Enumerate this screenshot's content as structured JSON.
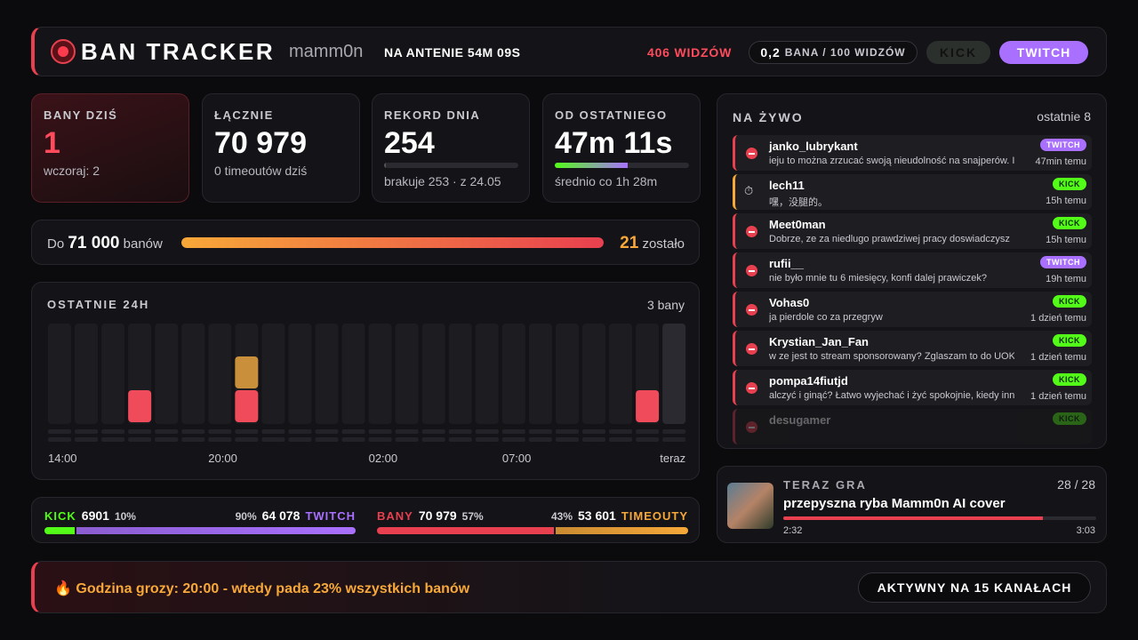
{
  "header": {
    "title": "BAN TRACKER",
    "channel": "mamm0n",
    "live": "NA ANTENIE 54M 09S",
    "viewers": "406 WIDZÓW",
    "rate_value": "0,2",
    "rate_unit": "BANA / 100 WIDZÓW",
    "buttons": [
      "KICK",
      "TWITCH"
    ]
  },
  "stats": [
    {
      "label": "BANY DZIŚ",
      "value": "1",
      "note": "wczoraj: 2"
    },
    {
      "label": "ŁĄCZNIE",
      "value": "70 979",
      "note": "0 timeoutów dziś"
    },
    {
      "label": "REKORD DNIA",
      "value": "254",
      "note": "brakuje 253 · z 24.05"
    },
    {
      "label": "OD OSTATNIEGO",
      "value": "47m 11s",
      "note": "średnio co 1h 28m"
    }
  ],
  "goal": {
    "prefix": "Do",
    "target": {
      "value": 71000,
      "label": "71 000"
    },
    "unit": "banów",
    "remaining": 21,
    "remaining_label": "zostało"
  },
  "last24h": {
    "title": "OSTATNIE 24H",
    "summary": "3 bany",
    "categories": [
      "14:00",
      null,
      null,
      null,
      null,
      null,
      "20:00",
      null,
      null,
      null,
      null,
      null,
      "02:00",
      null,
      null,
      null,
      null,
      "07:00",
      null,
      null,
      null,
      null,
      null,
      "teraz"
    ],
    "bans": [
      0,
      0,
      0,
      1,
      0,
      0,
      0,
      1,
      0,
      0,
      0,
      0,
      0,
      0,
      0,
      0,
      0,
      0,
      0,
      0,
      0,
      0,
      1,
      0
    ],
    "timeouts": [
      0,
      0,
      0,
      0,
      0,
      0,
      0,
      1,
      0,
      0,
      0,
      0,
      0,
      0,
      0,
      0,
      0,
      0,
      0,
      0,
      0,
      0,
      0,
      0
    ]
  },
  "split": [
    {
      "left": {
        "name": "KICK",
        "count": "6901",
        "pct": {
          "value": 10,
          "label": "10%"
        }
      },
      "right": {
        "name": "TWITCH",
        "count": "64 078",
        "pct": {
          "value": 90,
          "label": "90%"
        }
      }
    },
    {
      "left": {
        "name": "BANY",
        "count": "70 979",
        "pct": {
          "value": 57,
          "label": "57%"
        }
      },
      "right": {
        "name": "TIMEOUTY",
        "count": "53 601",
        "pct": {
          "value": 43,
          "label": "43%"
        }
      }
    }
  ],
  "feed": {
    "title": "NA ŻYWO",
    "count": "ostatnie 8",
    "items": [
      {
        "user": "janko_lubrykant",
        "message": "ieju to można zrzucać swoją nieudolność na snajperów. I",
        "platform": "TWITCH",
        "time": "47min temu",
        "kind": "ban"
      },
      {
        "user": "lech11",
        "message": "嘿，没腿的。",
        "platform": "KICK",
        "time": "15h temu",
        "kind": "timeout"
      },
      {
        "user": "Meet0man",
        "message": "Dobrze, ze za niedlugo prawdziwej pracy doswiadczysz",
        "platform": "KICK",
        "time": "15h temu",
        "kind": "ban"
      },
      {
        "user": "rufii__",
        "message": "nie było mnie tu 6 miesięcy, konfi dalej prawiczek?",
        "platform": "TWITCH",
        "time": "19h temu",
        "kind": "ban"
      },
      {
        "user": "Vohas0",
        "message": "ja pierdole co za przegryw",
        "platform": "KICK",
        "time": "1 dzień temu",
        "kind": "ban"
      },
      {
        "user": "Krystian_Jan_Fan",
        "message": "w ze jest to stream sponsorowany? Zglaszam to do UOK",
        "platform": "KICK",
        "time": "1 dzień temu",
        "kind": "ban"
      },
      {
        "user": "pompa14fiutjd",
        "message": "alczyć i ginąć? Łatwo wyjechać i żyć spokojnie, kiedy inn",
        "platform": "KICK",
        "time": "1 dzień temu",
        "kind": "ban"
      },
      {
        "user": "desugamer",
        "message": "",
        "platform": "KICK",
        "time": "",
        "kind": "ban"
      }
    ]
  },
  "song": {
    "label": "TERAZ GRA",
    "position": "28 / 28",
    "title": "przepyszna ryba Mamm0n AI cover",
    "elapsed": "2:32",
    "duration": "3:03"
  },
  "footer": {
    "text": "🔥 Godzina grozy: 20:00 - wtedy pada 23% wszystkich banów",
    "button": "AKTYWNY NA 15 KANAŁACH"
  }
}
